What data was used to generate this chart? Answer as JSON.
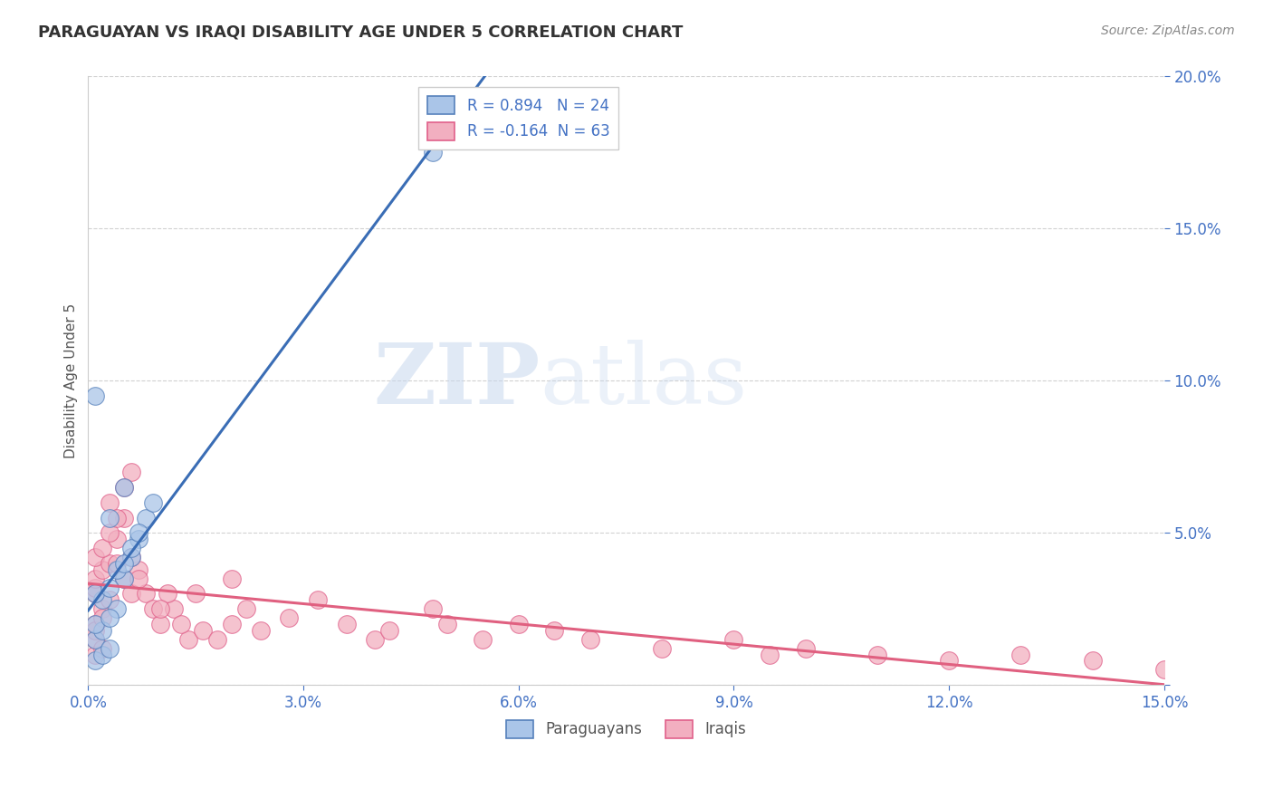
{
  "title": "PARAGUAYAN VS IRAQI DISABILITY AGE UNDER 5 CORRELATION CHART",
  "source_text": "Source: ZipAtlas.com",
  "ylabel": "Disability Age Under 5",
  "xlim": [
    0.0,
    0.15
  ],
  "ylim": [
    0.0,
    0.2
  ],
  "yticks": [
    0.0,
    0.05,
    0.1,
    0.15,
    0.2
  ],
  "ytick_labels": [
    "",
    "5.0%",
    "10.0%",
    "15.0%",
    "20.0%"
  ],
  "xticks": [
    0.0,
    0.03,
    0.06,
    0.09,
    0.12,
    0.15
  ],
  "xtick_labels": [
    "0.0%",
    "3.0%",
    "6.0%",
    "9.0%",
    "12.0%",
    "15.0%"
  ],
  "grid_color": "#cccccc",
  "background_color": "#ffffff",
  "paraguayan_fill": "#aac5e8",
  "paraguayan_edge": "#5580bb",
  "iraqi_fill": "#f2afc0",
  "iraqi_edge": "#e0608a",
  "paraguayan_line_color": "#3a6db5",
  "iraqi_line_color": "#e06080",
  "R_paraguayan": 0.894,
  "N_paraguayan": 24,
  "R_iraqi": -0.164,
  "N_iraqi": 63,
  "watermark_zip": "ZIP",
  "watermark_atlas": "atlas",
  "tick_color": "#4472c4",
  "legend1_label1": "R = 0.894   N = 24",
  "legend1_label2": "R = -0.164  N = 63",
  "legend2_label1": "Paraguayans",
  "legend2_label2": "Iraqis",
  "par_x": [
    0.001,
    0.002,
    0.001,
    0.003,
    0.002,
    0.001,
    0.004,
    0.003,
    0.002,
    0.001,
    0.005,
    0.003,
    0.004,
    0.006,
    0.005,
    0.007,
    0.006,
    0.008,
    0.007,
    0.009,
    0.001,
    0.003,
    0.005,
    0.048
  ],
  "par_y": [
    0.008,
    0.01,
    0.015,
    0.012,
    0.018,
    0.02,
    0.025,
    0.022,
    0.028,
    0.03,
    0.035,
    0.032,
    0.038,
    0.042,
    0.04,
    0.048,
    0.045,
    0.055,
    0.05,
    0.06,
    0.095,
    0.055,
    0.065,
    0.175
  ],
  "irq_x": [
    0.001,
    0.001,
    0.001,
    0.002,
    0.002,
    0.001,
    0.001,
    0.002,
    0.003,
    0.001,
    0.001,
    0.002,
    0.001,
    0.003,
    0.002,
    0.004,
    0.003,
    0.005,
    0.004,
    0.006,
    0.005,
    0.007,
    0.006,
    0.008,
    0.007,
    0.009,
    0.01,
    0.012,
    0.011,
    0.014,
    0.013,
    0.016,
    0.018,
    0.02,
    0.022,
    0.024,
    0.028,
    0.032,
    0.036,
    0.04,
    0.042,
    0.05,
    0.048,
    0.055,
    0.06,
    0.065,
    0.07,
    0.08,
    0.09,
    0.095,
    0.1,
    0.11,
    0.12,
    0.13,
    0.14,
    0.15,
    0.003,
    0.004,
    0.005,
    0.006,
    0.01,
    0.015,
    0.02
  ],
  "irq_y": [
    0.01,
    0.015,
    0.02,
    0.025,
    0.012,
    0.03,
    0.018,
    0.022,
    0.028,
    0.032,
    0.035,
    0.038,
    0.042,
    0.04,
    0.045,
    0.048,
    0.05,
    0.035,
    0.04,
    0.03,
    0.055,
    0.038,
    0.042,
    0.03,
    0.035,
    0.025,
    0.02,
    0.025,
    0.03,
    0.015,
    0.02,
    0.018,
    0.015,
    0.02,
    0.025,
    0.018,
    0.022,
    0.028,
    0.02,
    0.015,
    0.018,
    0.02,
    0.025,
    0.015,
    0.02,
    0.018,
    0.015,
    0.012,
    0.015,
    0.01,
    0.012,
    0.01,
    0.008,
    0.01,
    0.008,
    0.005,
    0.06,
    0.055,
    0.065,
    0.07,
    0.025,
    0.03,
    0.035
  ]
}
